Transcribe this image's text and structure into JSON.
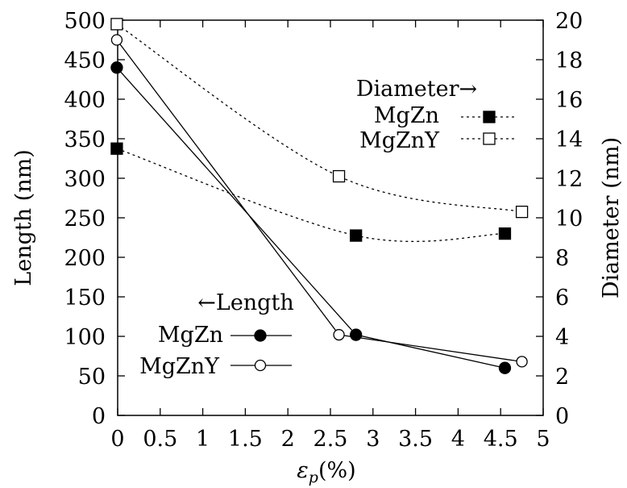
{
  "chart_data": {
    "type": "line",
    "xlabel_symbol": "ε",
    "xlabel_sub": "p",
    "xlabel_rest": "(%)",
    "ylabel_left": "Length (nm)",
    "ylabel_right": "Diameter (nm)",
    "xlim": [
      0,
      5
    ],
    "ylim_left": [
      0,
      500
    ],
    "ylim_right": [
      0,
      20
    ],
    "x_ticks": [
      "0",
      "0.5",
      "1",
      "1.5",
      "2",
      "2.5",
      "3",
      "3.5",
      "4",
      "4.5",
      "5"
    ],
    "y_left_ticks": [
      "0",
      "50",
      "100",
      "150",
      "200",
      "250",
      "300",
      "350",
      "400",
      "450",
      "500"
    ],
    "y_right_ticks": [
      "0",
      "2",
      "4",
      "6",
      "8",
      "10",
      "12",
      "14",
      "16",
      "18",
      "20"
    ],
    "length_series": [
      {
        "name": "MgZn",
        "marker": "filled-circle",
        "line": "solid",
        "x": [
          -0.01,
          2.8,
          4.55
        ],
        "y": [
          440,
          102,
          60
        ]
      },
      {
        "name": "MgZnY",
        "marker": "open-circle",
        "line": "solid",
        "x": [
          -0.01,
          2.6,
          4.75
        ],
        "y": [
          475,
          102,
          68
        ]
      }
    ],
    "diameter_series": [
      {
        "name": "MgZn",
        "marker": "filled-square",
        "line": "dotted",
        "x": [
          -0.01,
          2.8,
          4.55
        ],
        "y": [
          13.5,
          9.1,
          9.2
        ]
      },
      {
        "name": "MgZnY",
        "marker": "open-square",
        "line": "dotted",
        "x": [
          -0.01,
          2.6,
          4.75
        ],
        "y": [
          19.8,
          12.1,
          10.3
        ]
      }
    ],
    "legend_length_title": "←Length",
    "legend_diameter_title": "Diameter→",
    "grid": false
  }
}
